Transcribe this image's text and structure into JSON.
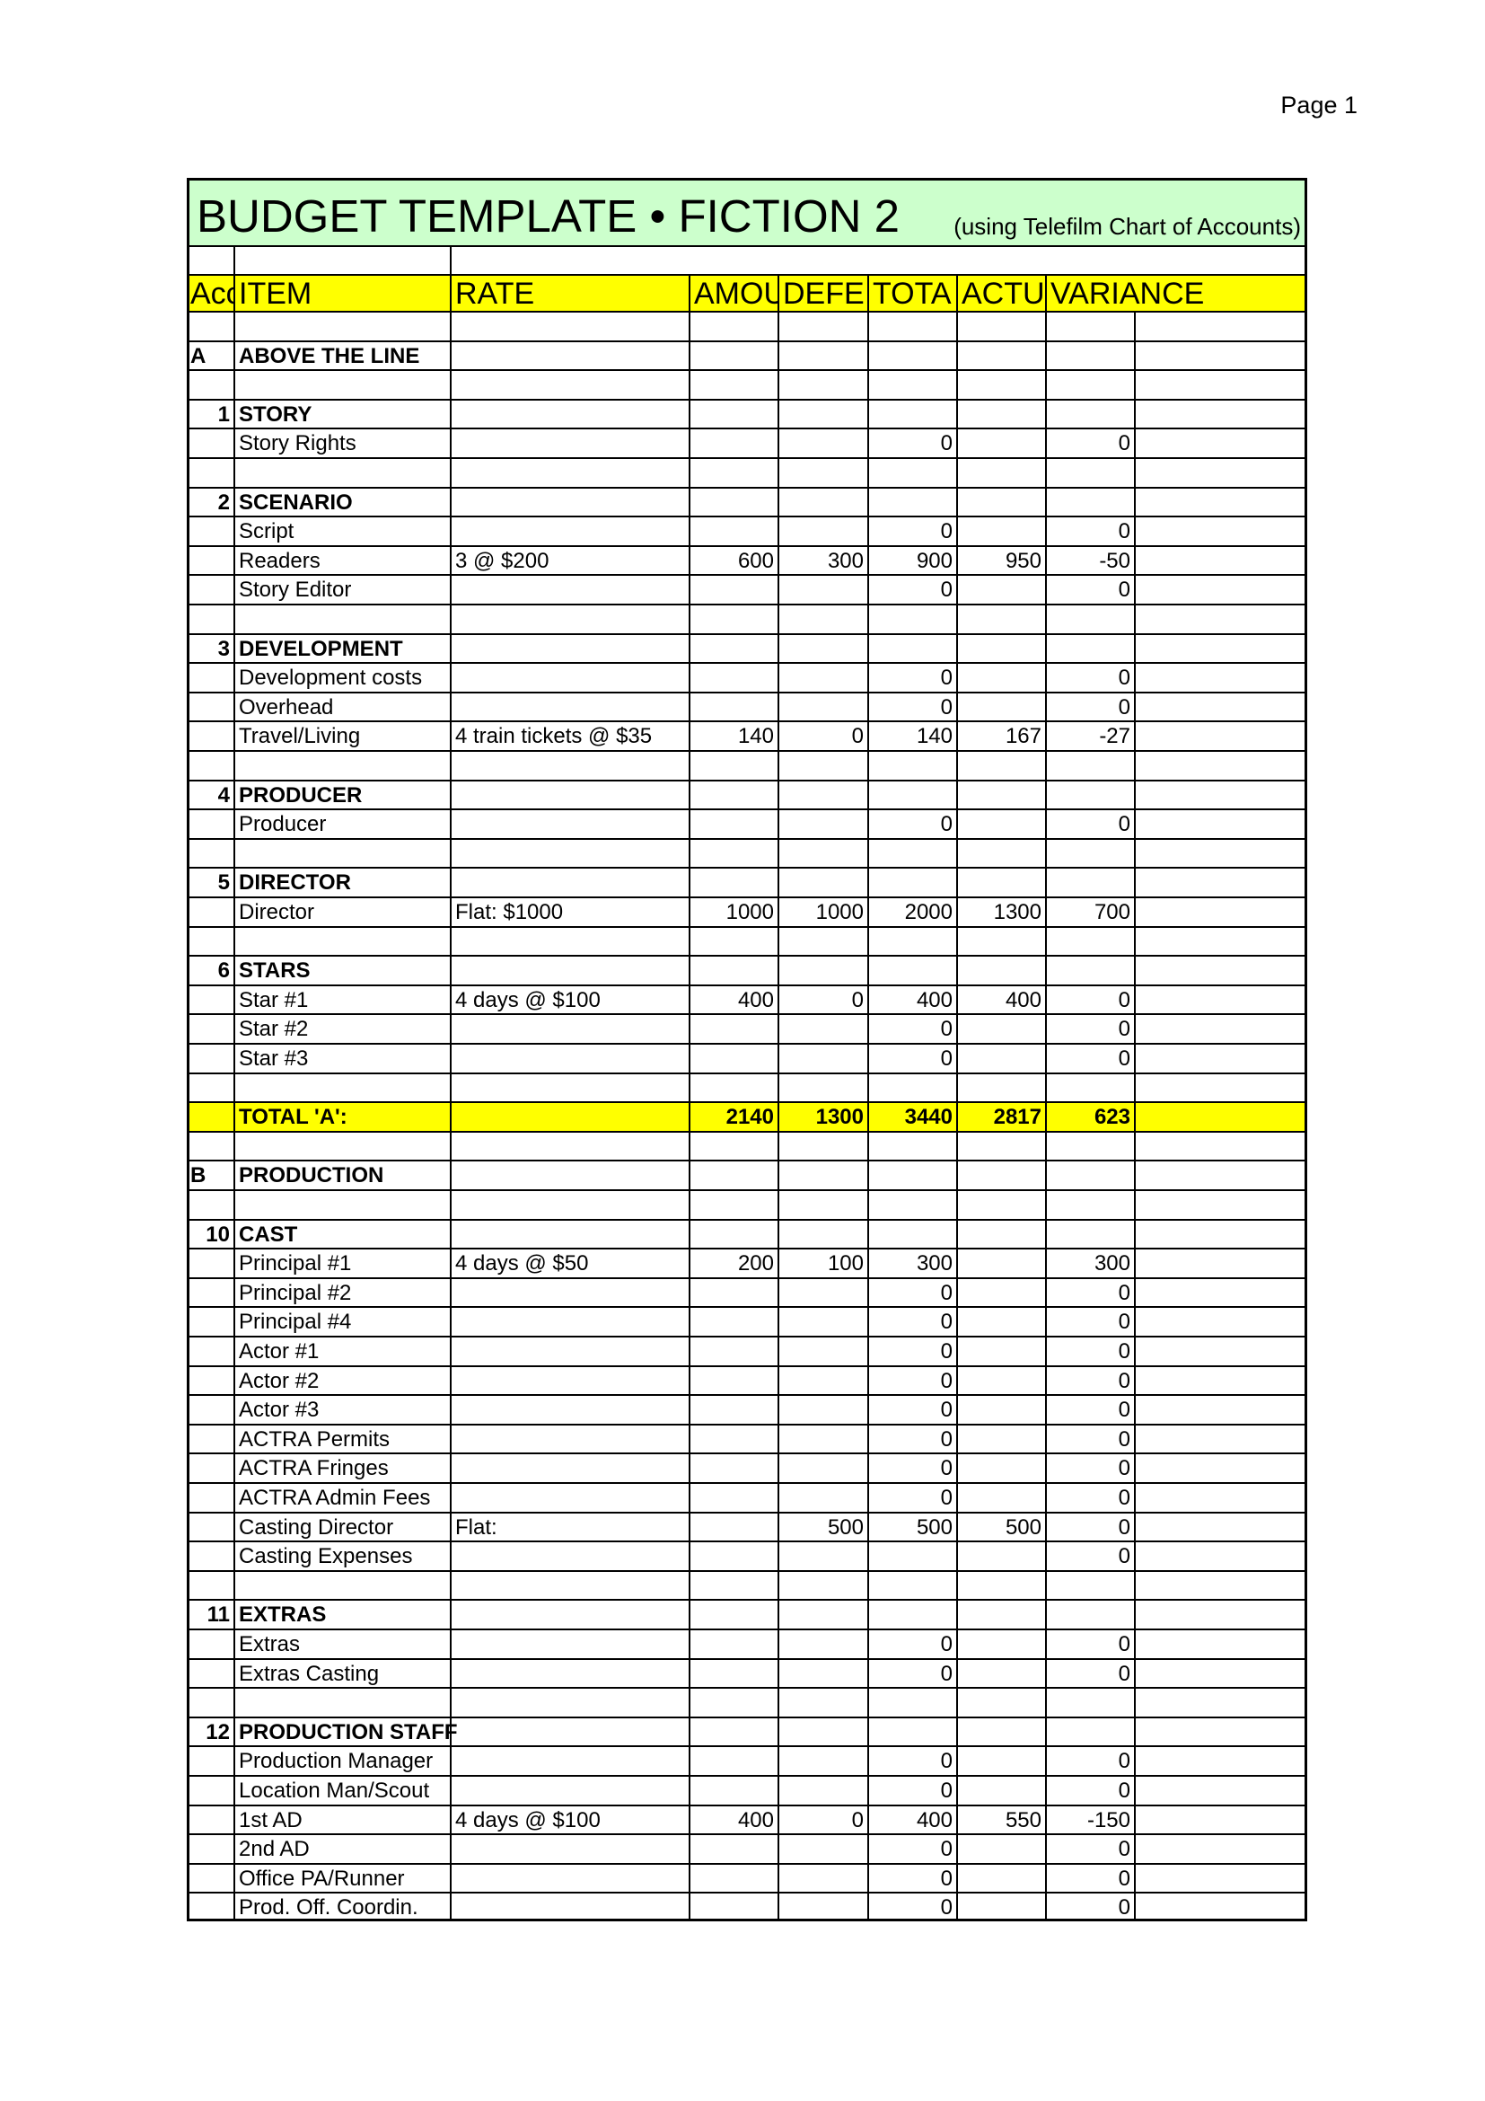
{
  "header": {
    "page": "Page 1"
  },
  "title": "BUDGET TEMPLATE • FICTION 2",
  "subtitle": "(using Telefilm Chart of Accounts)",
  "table": {
    "columns": [
      "Acc",
      "ITEM",
      "RATE",
      "AMOU",
      "DEFE",
      "TOTA",
      "ACTU",
      "VARIANCE"
    ],
    "rows": [
      null,
      {
        "acc": "A",
        "item": "ABOVE THE LINE",
        "kind": "section"
      },
      null,
      {
        "acc": 1,
        "item": "STORY",
        "kind": "section"
      },
      {
        "item": "Story Rights",
        "total": 0,
        "variance": 0
      },
      null,
      {
        "acc": 2,
        "item": "SCENARIO",
        "kind": "section"
      },
      {
        "item": "Script",
        "total": 0,
        "variance": 0
      },
      {
        "item": "Readers",
        "rate": "3 @ $200",
        "amount": 600,
        "deferred": 300,
        "total": 900,
        "actual": 950,
        "variance": -50
      },
      {
        "item": "Story Editor",
        "total": 0,
        "variance": 0
      },
      null,
      {
        "acc": 3,
        "item": "DEVELOPMENT",
        "kind": "section"
      },
      {
        "item": "Development costs",
        "total": 0,
        "variance": 0
      },
      {
        "item": "Overhead",
        "total": 0,
        "variance": 0
      },
      {
        "item": "Travel/Living",
        "rate": "4 train tickets @ $35",
        "amount": 140,
        "deferred": 0,
        "total": 140,
        "actual": 167,
        "variance": -27
      },
      null,
      {
        "acc": 4,
        "item": "PRODUCER",
        "kind": "section"
      },
      {
        "item": "Producer",
        "total": 0,
        "variance": 0
      },
      null,
      {
        "acc": 5,
        "item": "DIRECTOR",
        "kind": "section"
      },
      {
        "item": "Director",
        "rate": "Flat: $1000",
        "amount": 1000,
        "deferred": 1000,
        "total": 2000,
        "actual": 1300,
        "variance": 700
      },
      null,
      {
        "acc": 6,
        "item": "STARS",
        "kind": "section"
      },
      {
        "item": "Star #1",
        "rate": "4 days @ $100",
        "amount": 400,
        "deferred": 0,
        "total": 400,
        "actual": 400,
        "variance": 0
      },
      {
        "item": "Star #2",
        "total": 0,
        "variance": 0
      },
      {
        "item": "Star #3",
        "total": 0,
        "variance": 0
      },
      null,
      {
        "item": "TOTAL 'A':",
        "amount": 2140,
        "deferred": 1300,
        "total": 3440,
        "actual": 2817,
        "variance": 623,
        "kind": "total"
      },
      null,
      {
        "acc": "B",
        "item": "PRODUCTION",
        "kind": "section"
      },
      null,
      {
        "acc": 10,
        "item": "CAST",
        "kind": "section"
      },
      {
        "item": "Principal #1",
        "rate": "4 days @ $50",
        "amount": 200,
        "deferred": 100,
        "total": 300,
        "variance": 300
      },
      {
        "item": "Principal #2",
        "total": 0,
        "variance": 0
      },
      {
        "item": "Principal #4",
        "total": 0,
        "variance": 0
      },
      {
        "item": "Actor #1",
        "total": 0,
        "variance": 0
      },
      {
        "item": "Actor #2",
        "total": 0,
        "variance": 0
      },
      {
        "item": "Actor #3",
        "total": 0,
        "variance": 0
      },
      {
        "item": "ACTRA Permits",
        "total": 0,
        "variance": 0
      },
      {
        "item": "ACTRA Fringes",
        "total": 0,
        "variance": 0
      },
      {
        "item": "ACTRA Admin Fees",
        "total": 0,
        "variance": 0
      },
      {
        "item": "Casting Director",
        "rate": "Flat:",
        "deferred": 500,
        "total": 500,
        "actual": 500,
        "variance": 0
      },
      {
        "item": "Casting Expenses",
        "variance": 0
      },
      null,
      {
        "acc": 11,
        "item": "EXTRAS",
        "kind": "section"
      },
      {
        "item": "Extras",
        "total": 0,
        "variance": 0
      },
      {
        "item": "Extras Casting",
        "total": 0,
        "variance": 0
      },
      null,
      {
        "acc": 12,
        "item": "PRODUCTION STAFF",
        "kind": "section"
      },
      {
        "item": "Production Manager",
        "total": 0,
        "variance": 0
      },
      {
        "item": "Location Man/Scout",
        "total": 0,
        "variance": 0
      },
      {
        "item": "1st AD",
        "rate": "4 days @ $100",
        "amount": 400,
        "deferred": 0,
        "total": 400,
        "actual": 550,
        "variance": -150
      },
      {
        "item": "2nd AD",
        "total": 0,
        "variance": 0
      },
      {
        "item": "Office PA/Runner",
        "total": 0,
        "variance": 0
      },
      {
        "item": "Prod. Off. Coordin.",
        "total": 0,
        "variance": 0
      }
    ]
  }
}
